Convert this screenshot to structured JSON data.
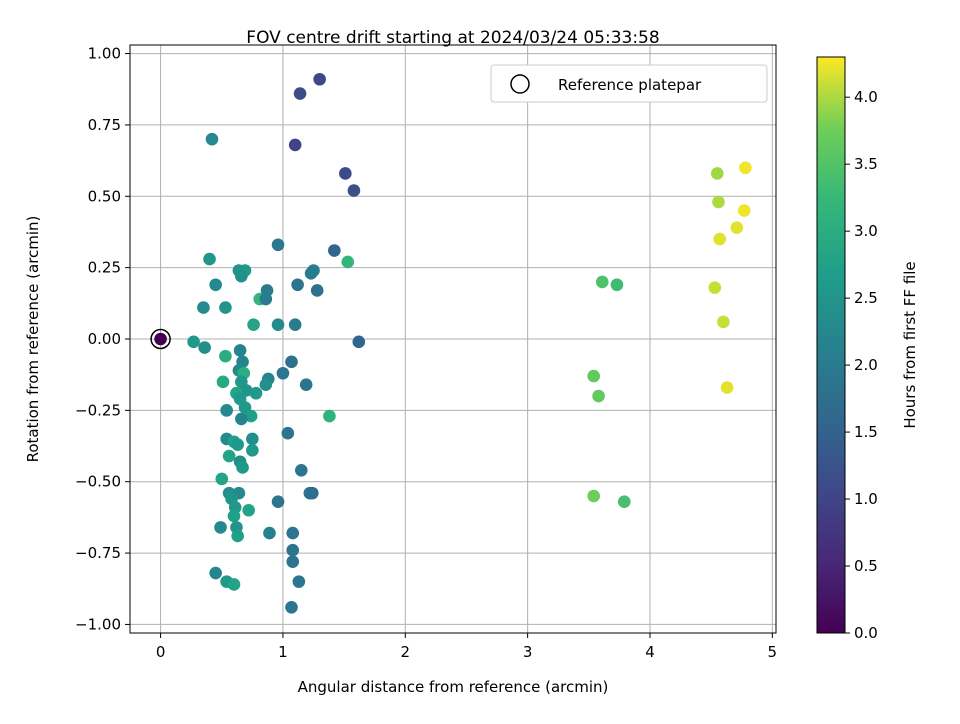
{
  "chart_data": {
    "type": "scatter",
    "title": "FOV centre drift starting at 2024/03/24 05:33:58",
    "xlabel": "Angular distance from reference (arcmin)",
    "ylabel": "Rotation from reference (arcmin)",
    "xlim": [
      -0.25,
      5.03
    ],
    "ylim": [
      -1.03,
      1.03
    ],
    "xticks": [
      0,
      1,
      2,
      3,
      4,
      5
    ],
    "xtick_labels": [
      "0",
      "1",
      "2",
      "3",
      "4",
      "5"
    ],
    "yticks": [
      1.0,
      0.75,
      0.5,
      0.25,
      0.0,
      -0.25,
      -0.5,
      -0.75,
      -1.0
    ],
    "ytick_labels": [
      "1.00",
      "0.75",
      "0.50",
      "0.25",
      "0.00",
      "−0.25",
      "−0.50",
      "−0.75",
      "−1.00"
    ],
    "grid": true,
    "legend": {
      "position": "upper right",
      "entries": [
        "Reference platepar"
      ]
    },
    "colormap": "viridis",
    "colorbar": {
      "label": "Hours from first FF file",
      "range": [
        0.0,
        4.3
      ],
      "ticks": [
        0.0,
        0.5,
        1.0,
        1.5,
        2.0,
        2.5,
        3.0,
        3.5,
        4.0
      ],
      "tick_labels": [
        "0.0",
        "0.5",
        "1.0",
        "1.5",
        "2.0",
        "2.5",
        "3.0",
        "3.5",
        "4.0"
      ]
    },
    "reference_point": {
      "x": 0.0,
      "y": 0.0,
      "hours": 0.0
    },
    "points": [
      [
        1.3,
        0.91,
        1.05
      ],
      [
        1.14,
        0.86,
        1.15
      ],
      [
        1.1,
        0.68,
        1.0
      ],
      [
        1.51,
        0.58,
        1.1
      ],
      [
        1.58,
        0.52,
        1.2
      ],
      [
        0.42,
        0.7,
        2.3
      ],
      [
        0.96,
        0.33,
        1.95
      ],
      [
        1.42,
        0.31,
        1.6
      ],
      [
        1.53,
        0.27,
        3.2
      ],
      [
        0.4,
        0.28,
        2.5
      ],
      [
        0.64,
        0.24,
        2.5
      ],
      [
        0.69,
        0.24,
        2.6
      ],
      [
        1.25,
        0.24,
        2.1
      ],
      [
        1.23,
        0.23,
        2.0
      ],
      [
        0.66,
        0.22,
        2.4
      ],
      [
        0.45,
        0.19,
        2.3
      ],
      [
        1.12,
        0.19,
        1.9
      ],
      [
        0.87,
        0.17,
        2.0
      ],
      [
        1.28,
        0.17,
        1.8
      ],
      [
        0.81,
        0.14,
        3.2
      ],
      [
        0.86,
        0.14,
        2.0
      ],
      [
        0.35,
        0.11,
        2.3
      ],
      [
        0.53,
        0.11,
        2.5
      ],
      [
        0.76,
        0.05,
        2.8
      ],
      [
        0.96,
        0.05,
        2.3
      ],
      [
        1.1,
        0.05,
        2.0
      ],
      [
        0.27,
        -0.01,
        2.6
      ],
      [
        1.62,
        -0.01,
        1.6
      ],
      [
        0.36,
        -0.03,
        2.4
      ],
      [
        0.65,
        -0.04,
        2.2
      ],
      [
        0.53,
        -0.06,
        3.0
      ],
      [
        1.07,
        -0.08,
        1.8
      ],
      [
        0.67,
        -0.08,
        2.2
      ],
      [
        0.64,
        -0.11,
        2.3
      ],
      [
        0.68,
        -0.12,
        3.0
      ],
      [
        1.0,
        -0.12,
        1.9
      ],
      [
        0.88,
        -0.14,
        2.2
      ],
      [
        0.51,
        -0.15,
        2.9
      ],
      [
        0.66,
        -0.15,
        2.6
      ],
      [
        1.19,
        -0.16,
        1.9
      ],
      [
        0.86,
        -0.16,
        2.4
      ],
      [
        0.7,
        -0.18,
        2.5
      ],
      [
        0.62,
        -0.19,
        2.8
      ],
      [
        0.78,
        -0.19,
        2.6
      ],
      [
        0.65,
        -0.21,
        2.6
      ],
      [
        0.69,
        -0.24,
        2.6
      ],
      [
        0.54,
        -0.25,
        2.3
      ],
      [
        0.74,
        -0.27,
        2.7
      ],
      [
        0.66,
        -0.28,
        2.2
      ],
      [
        1.38,
        -0.27,
        3.1
      ],
      [
        1.04,
        -0.33,
        1.9
      ],
      [
        0.54,
        -0.35,
        2.3
      ],
      [
        0.6,
        -0.36,
        2.7
      ],
      [
        0.63,
        -0.37,
        2.6
      ],
      [
        0.75,
        -0.35,
        2.4
      ],
      [
        0.75,
        -0.39,
        2.6
      ],
      [
        0.56,
        -0.41,
        2.8
      ],
      [
        0.65,
        -0.43,
        2.4
      ],
      [
        0.67,
        -0.45,
        2.6
      ],
      [
        1.15,
        -0.46,
        1.9
      ],
      [
        0.5,
        -0.49,
        2.8
      ],
      [
        0.56,
        -0.54,
        2.4
      ],
      [
        0.64,
        -0.54,
        2.3
      ],
      [
        1.22,
        -0.54,
        1.8
      ],
      [
        1.24,
        -0.54,
        1.7
      ],
      [
        0.58,
        -0.56,
        2.5
      ],
      [
        0.96,
        -0.57,
        1.9
      ],
      [
        0.61,
        -0.59,
        2.6
      ],
      [
        0.72,
        -0.6,
        2.8
      ],
      [
        0.6,
        -0.62,
        2.7
      ],
      [
        0.49,
        -0.66,
        2.3
      ],
      [
        0.62,
        -0.66,
        2.5
      ],
      [
        0.89,
        -0.68,
        2.1
      ],
      [
        1.08,
        -0.68,
        1.9
      ],
      [
        0.63,
        -0.69,
        2.7
      ],
      [
        1.08,
        -0.74,
        1.9
      ],
      [
        1.08,
        -0.78,
        1.9
      ],
      [
        0.45,
        -0.82,
        2.2
      ],
      [
        0.54,
        -0.85,
        2.6
      ],
      [
        0.6,
        -0.86,
        2.8
      ],
      [
        1.13,
        -0.85,
        1.9
      ],
      [
        1.07,
        -0.94,
        1.9
      ],
      [
        3.61,
        0.2,
        3.45
      ],
      [
        3.73,
        0.19,
        3.3
      ],
      [
        3.54,
        -0.13,
        3.65
      ],
      [
        3.58,
        -0.2,
        3.65
      ],
      [
        3.54,
        -0.55,
        3.75
      ],
      [
        3.79,
        -0.57,
        3.4
      ],
      [
        4.55,
        0.58,
        3.95
      ],
      [
        4.56,
        0.48,
        4.0
      ],
      [
        4.78,
        0.6,
        4.25
      ],
      [
        4.77,
        0.45,
        4.25
      ],
      [
        4.71,
        0.39,
        4.2
      ],
      [
        4.57,
        0.35,
        4.2
      ],
      [
        4.53,
        0.18,
        4.1
      ],
      [
        4.6,
        0.06,
        4.1
      ],
      [
        4.63,
        -0.17,
        4.2
      ]
    ]
  }
}
